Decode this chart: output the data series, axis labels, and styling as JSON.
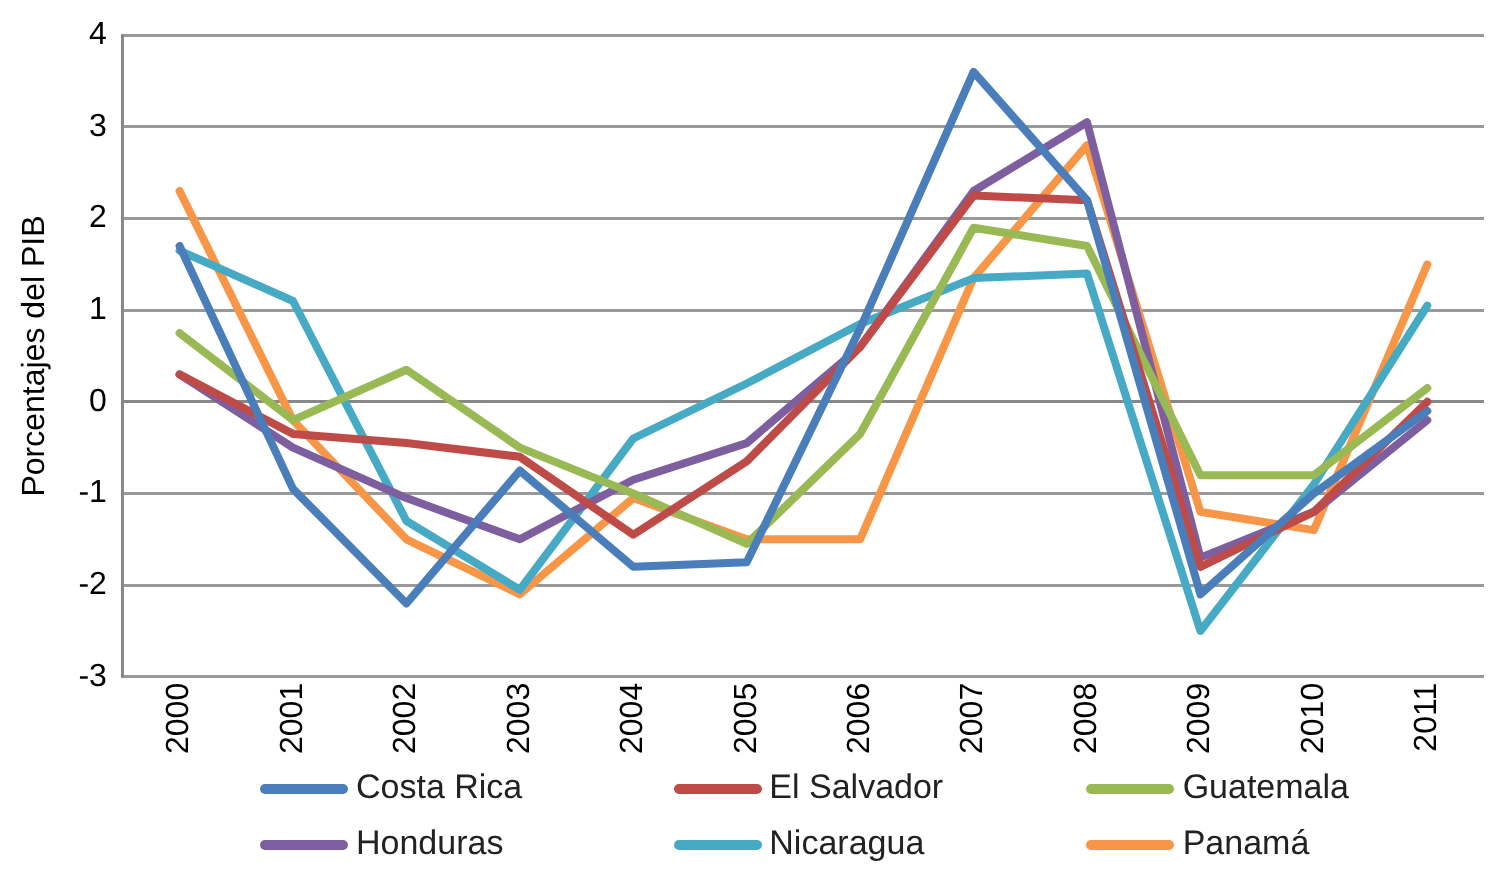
{
  "chart_data": {
    "type": "line",
    "ylabel": "Porcentajes del PIB",
    "categories": [
      "2000",
      "2001",
      "2002",
      "2003",
      "2004",
      "2005",
      "2006",
      "2007",
      "2008",
      "2009",
      "2010",
      "2011"
    ],
    "series": [
      {
        "name": "Costa Rica",
        "color": "#4a7ebb",
        "values": [
          1.7,
          -0.95,
          -2.2,
          -0.75,
          -1.8,
          -1.75,
          0.8,
          3.6,
          2.2,
          -2.1,
          -1.0,
          -0.1
        ]
      },
      {
        "name": "El Salvador",
        "color": "#be4b48",
        "values": [
          0.3,
          -0.35,
          -0.45,
          -0.6,
          -1.45,
          -0.65,
          0.6,
          2.25,
          2.2,
          -1.8,
          -1.2,
          0.0
        ]
      },
      {
        "name": "Guatemala",
        "color": "#98b954",
        "values": [
          0.75,
          -0.2,
          0.35,
          -0.5,
          -1.0,
          -1.55,
          -0.35,
          1.9,
          1.7,
          -0.8,
          -0.8,
          0.15
        ]
      },
      {
        "name": "Honduras",
        "color": "#7d5fa0",
        "values": [
          0.3,
          -0.5,
          -1.05,
          -1.5,
          -0.85,
          -0.45,
          0.6,
          2.3,
          3.05,
          -1.7,
          -1.2,
          -0.2
        ]
      },
      {
        "name": "Nicaragua",
        "color": "#46aac5",
        "values": [
          1.65,
          1.1,
          -1.3,
          -2.05,
          -0.4,
          0.2,
          0.85,
          1.35,
          1.4,
          -2.5,
          -0.9,
          1.05
        ]
      },
      {
        "name": "Panamá",
        "color": "#f79646",
        "values": [
          2.3,
          -0.2,
          -1.5,
          -2.1,
          -1.05,
          -1.5,
          -1.5,
          1.35,
          2.8,
          -1.2,
          -1.4,
          1.5
        ]
      }
    ],
    "ylim": [
      -3,
      4
    ],
    "yticks": [
      -3,
      -2,
      -1,
      0,
      1,
      2,
      3,
      4
    ],
    "grid": "y",
    "legend": "bottom",
    "marker": "none",
    "line_style": "solid"
  }
}
